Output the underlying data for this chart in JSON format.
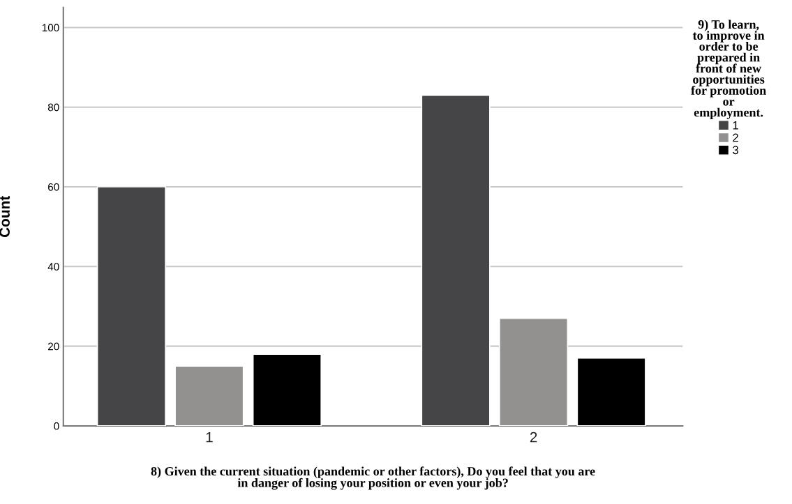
{
  "chart_data": {
    "type": "bar",
    "categories": [
      "1",
      "2"
    ],
    "xlabel": "8) Given the current situation (pandemic or other factors), Do you feel that you are\nin danger of losing your position or even your job?",
    "ylabel": "Count",
    "legend_title": "9) To learn,\nto improve in\norder to be\nprepared in\nfront of new\nopportunities\nfor promotion\nor\nemployment.",
    "series": [
      {
        "name": "1",
        "color": "#454547",
        "values": [
          60,
          83
        ]
      },
      {
        "name": "2",
        "color": "#939090",
        "values": [
          15,
          27
        ]
      },
      {
        "name": "3",
        "color": "#000000",
        "values": [
          18,
          17
        ]
      }
    ],
    "ylim": [
      0,
      105
    ],
    "yticks": [
      0,
      20,
      40,
      60,
      80,
      100
    ],
    "grid": "y",
    "legend": "right"
  }
}
